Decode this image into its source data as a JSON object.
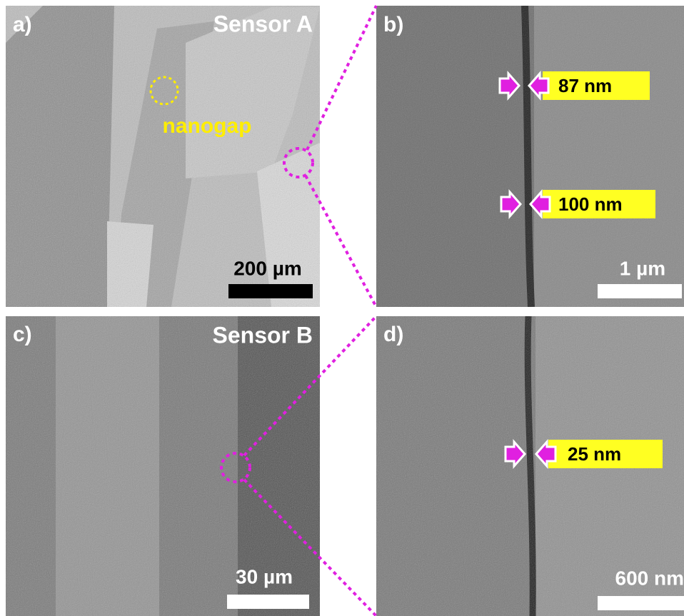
{
  "panels": [
    {
      "label": "a)",
      "title": "Sensor A",
      "annotation": "nanogap",
      "scale_bar": "200 µm"
    },
    {
      "label": "b)",
      "measurements": [
        "87 nm",
        "100 nm"
      ],
      "scale_bar": "1 µm"
    },
    {
      "label": "c)",
      "title": "Sensor B",
      "scale_bar": "30 µm"
    },
    {
      "label": "d)",
      "measurements": [
        "25 nm"
      ],
      "scale_bar": "600 nm"
    }
  ]
}
